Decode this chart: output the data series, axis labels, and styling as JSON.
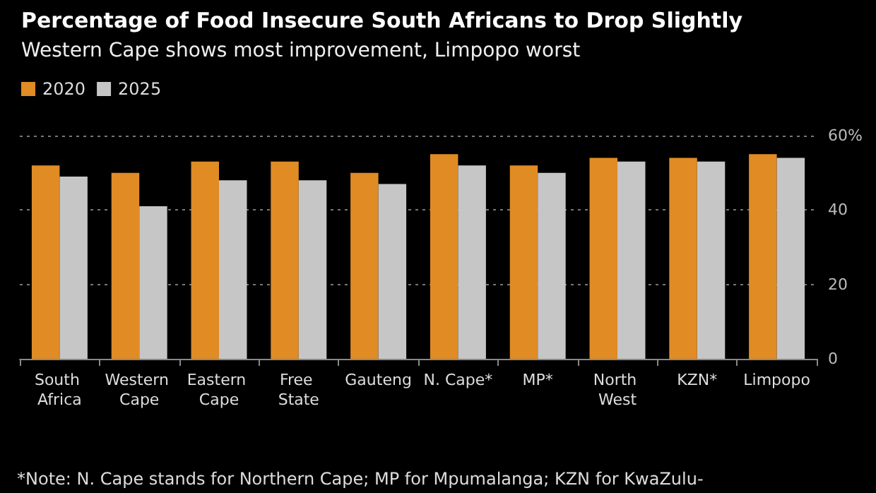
{
  "chart_data": {
    "type": "bar",
    "title": "Percentage of Food Insecure South Africans to Drop Slightly",
    "subtitle": "Western Cape shows most improvement, Limpopo worst",
    "categories": [
      "South Africa",
      "Western Cape",
      "Eastern Cape",
      "Free State",
      "Gauteng",
      "N. Cape*",
      "MP*",
      "North West",
      "KZN*",
      "Limpopo"
    ],
    "series": [
      {
        "name": "2020",
        "color": "#e08b24",
        "values": [
          52,
          50,
          53,
          53,
          50,
          55,
          52,
          54,
          54,
          55
        ]
      },
      {
        "name": "2025",
        "color": "#c6c6c6",
        "values": [
          49,
          41,
          48,
          48,
          47,
          52,
          50,
          53,
          53,
          54
        ]
      }
    ],
    "ylim": [
      0,
      60
    ],
    "yticks": [
      0,
      20,
      40,
      {
        "value": 60,
        "label": "60%"
      }
    ],
    "grid": "y",
    "legend": "top left",
    "annotations": [
      "*Note: N. Cape stands for Northern Cape; MP for Mpumalanga; KZN for KwaZulu-"
    ]
  }
}
